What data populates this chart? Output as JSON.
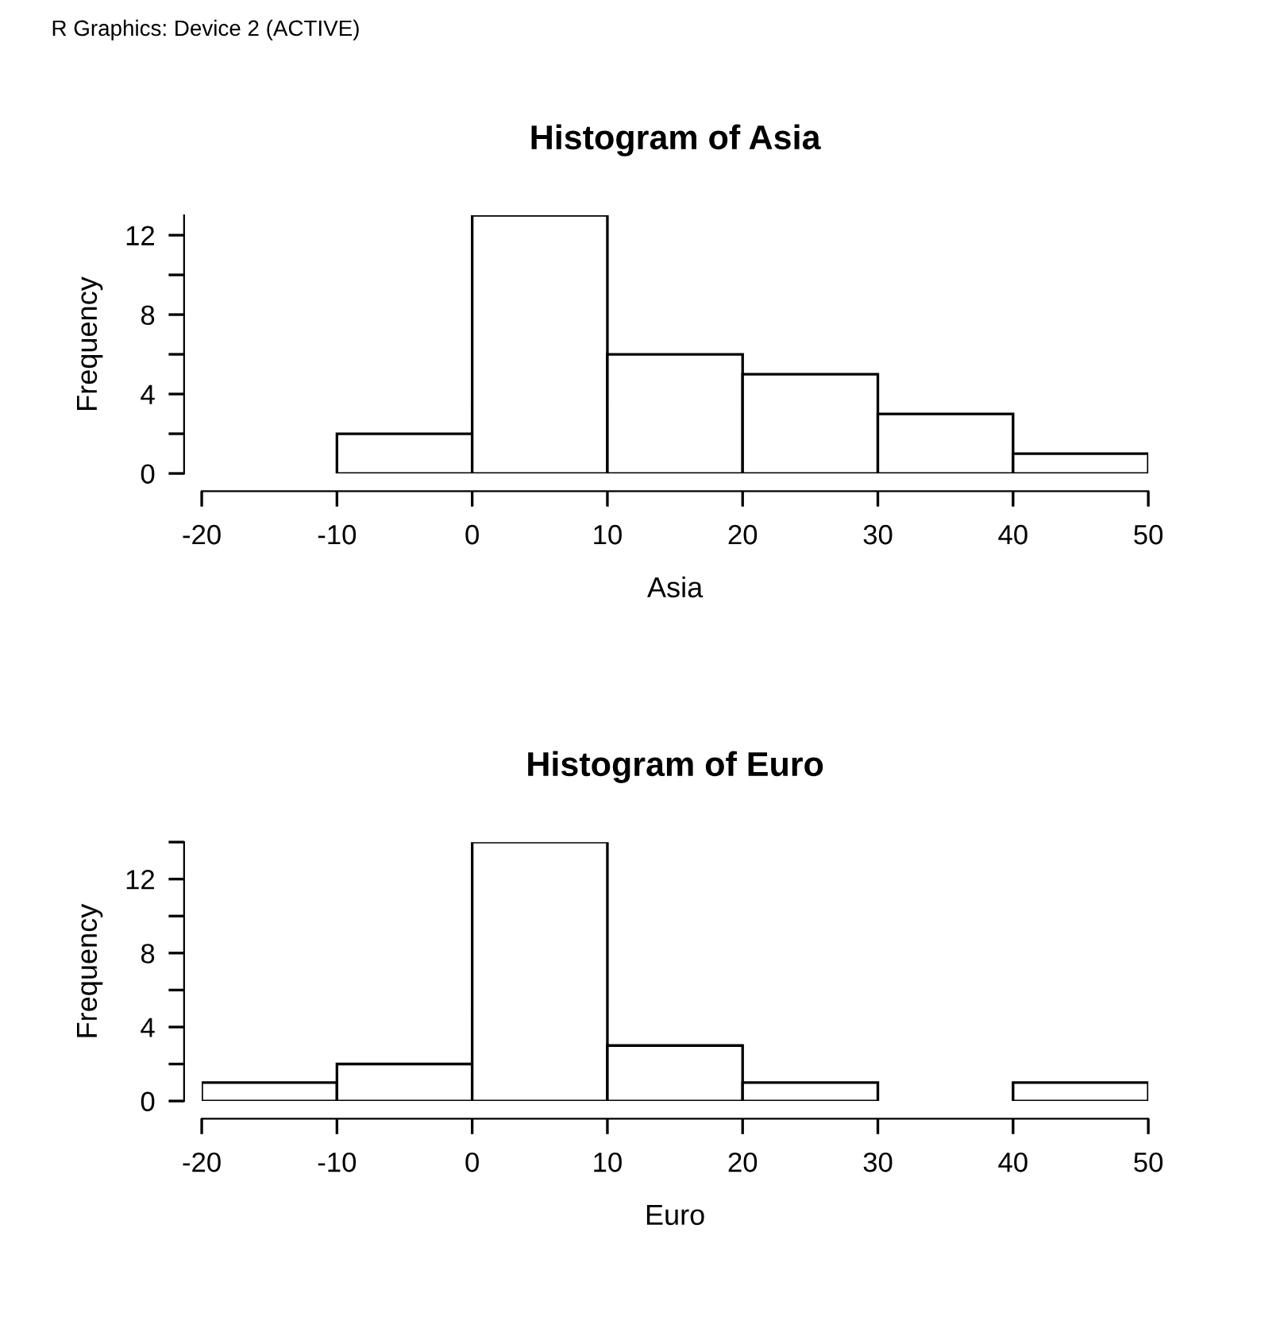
{
  "chart_data": [
    {
      "type": "histogram",
      "title": "Histogram of Asia",
      "xlabel": "Asia",
      "ylabel": "Frequency",
      "annotations": [
        "R Graphics: Device 2 (ACTIVE)"
      ],
      "bins": [
        -20,
        -10,
        0,
        10,
        20,
        30,
        40,
        50
      ],
      "values": [
        0,
        2,
        13,
        6,
        5,
        3,
        1
      ],
      "color": "#ffffff",
      "xlim": [
        -20,
        50
      ],
      "ylim": [
        0,
        13
      ],
      "xticks": [
        -20,
        -10,
        0,
        10,
        20,
        30,
        40,
        50
      ],
      "yticks": [
        0,
        {
          "value": 2,
          "label": null
        },
        4,
        {
          "value": 6,
          "label": null
        },
        8,
        {
          "value": 10,
          "label": null
        },
        12
      ],
      "grid": false,
      "legend": false
    },
    {
      "type": "histogram",
      "title": "Histogram of Euro",
      "xlabel": "Euro",
      "ylabel": "Frequency",
      "bins": [
        -20,
        -10,
        0,
        10,
        20,
        30,
        40,
        50
      ],
      "values": [
        1,
        2,
        14,
        3,
        1,
        0,
        1
      ],
      "color": "#ffffff",
      "xlim": [
        -20,
        50
      ],
      "ylim": [
        0,
        14
      ],
      "xticks": [
        -20,
        -10,
        0,
        10,
        20,
        30,
        40,
        50
      ],
      "yticks": [
        0,
        {
          "value": 2,
          "label": null
        },
        4,
        {
          "value": 6,
          "label": null
        },
        8,
        {
          "value": 10,
          "label": null
        },
        12,
        {
          "value": 14,
          "label": null
        }
      ],
      "grid": false,
      "legend": false
    }
  ]
}
